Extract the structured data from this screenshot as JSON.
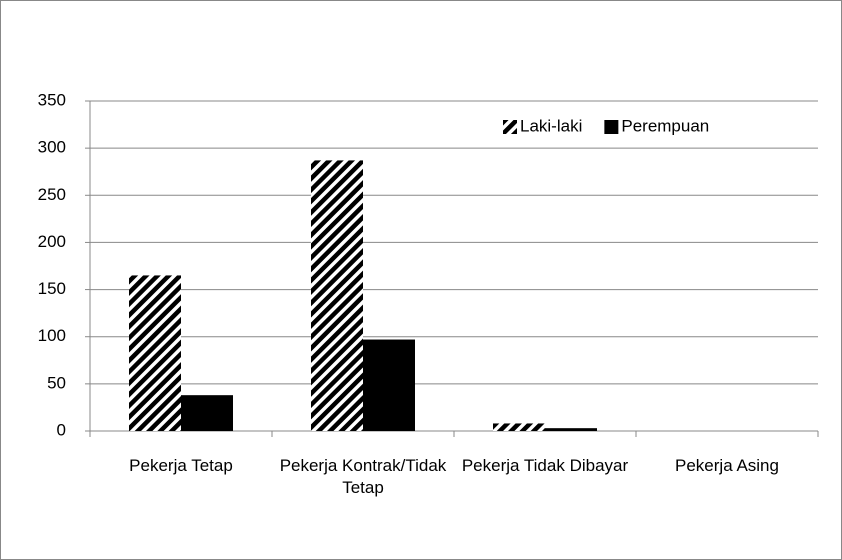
{
  "chart_data": {
    "type": "bar",
    "categories": [
      "Pekerja Tetap",
      "Pekerja Kontrak/Tidak Tetap",
      "Pekerja Tidak Dibayar",
      "Pekerja Asing"
    ],
    "series": [
      {
        "name": "Laki-laki",
        "color": "#000000",
        "hatch": true,
        "values": [
          165,
          287,
          8,
          0
        ]
      },
      {
        "name": "Perempuan",
        "color": "#000000",
        "hatch": false,
        "values": [
          38,
          97,
          3,
          0
        ]
      }
    ],
    "ylim": [
      0,
      350
    ],
    "yticks": [
      0,
      50,
      100,
      150,
      200,
      250,
      300,
      350
    ],
    "grid": true,
    "legend": "top-right"
  }
}
